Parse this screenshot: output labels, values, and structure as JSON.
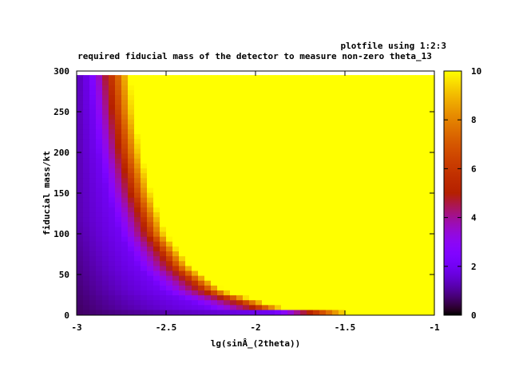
{
  "chart_data": {
    "type": "heatmap",
    "title": "required fiducial mass of the detector to measure non-zero theta_13",
    "key_label": "plotfile using 1:2:3",
    "xlabel": "lg(sinÂ_(2theta))",
    "ylabel": "fiducial mass/kt",
    "xlim": [
      -3,
      -1
    ],
    "ylim": [
      0,
      300
    ],
    "zlim": [
      0,
      10
    ],
    "x_ticks": [
      "-3",
      "-2.5",
      "-2",
      "-1.5",
      "-1"
    ],
    "y_ticks": [
      "0",
      "50",
      "100",
      "150",
      "200",
      "250",
      "300"
    ],
    "colorbar_ticks": [
      "0",
      "2",
      "4",
      "6",
      "8",
      "10"
    ],
    "data_extent": {
      "x": [
        -3,
        -1
      ],
      "y": [
        1,
        295
      ]
    },
    "contours": {
      "description": "approximate boundaries between color levels, as x (lg sin^2 2theta) at given fiducial mass",
      "mass": [
        1,
        10,
        30,
        60,
        100,
        150,
        200,
        250,
        295
      ],
      "z2_x": [
        -1.7,
        -2.28,
        -2.52,
        -2.66,
        -2.76,
        -2.83,
        -2.88,
        -2.91,
        -2.93
      ],
      "z5_x": [
        -1.55,
        -2.02,
        -2.3,
        -2.48,
        -2.61,
        -2.7,
        -2.76,
        -2.8,
        -2.83
      ],
      "z10_x": [
        -1.3,
        -1.85,
        -2.17,
        -2.36,
        -2.5,
        -2.58,
        -2.64,
        -2.68,
        -2.7
      ]
    },
    "grid": false,
    "colormap": "gnuplot default (black-purple-red-orange-yellow)"
  }
}
